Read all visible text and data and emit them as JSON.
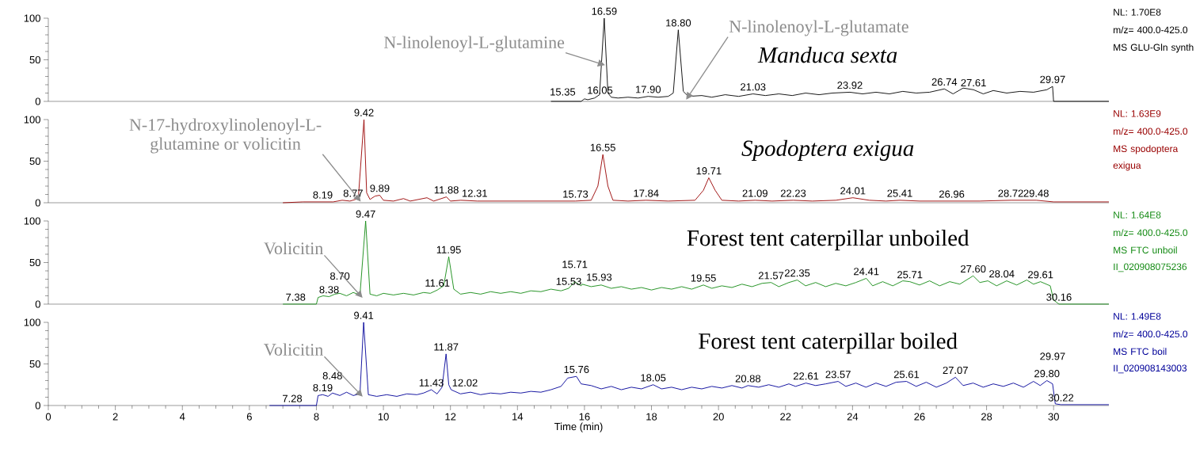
{
  "chart_data": [
    {
      "type": "line",
      "title": "Manduca sexta",
      "xlim": [
        0,
        31.65
      ],
      "ylim": [
        0,
        100
      ],
      "yticks": [
        0,
        50,
        100
      ],
      "tick_labels": "y",
      "x": [
        15.0,
        15.9,
        16.0,
        16.1,
        16.3,
        16.45,
        16.59,
        16.7,
        16.8,
        17.0,
        17.3,
        17.6,
        17.9,
        18.2,
        18.5,
        18.65,
        18.8,
        18.95,
        19.1,
        19.5,
        19.8,
        20.2,
        20.6,
        21.03,
        21.4,
        21.8,
        22.2,
        22.6,
        23.0,
        23.4,
        23.92,
        24.3,
        24.7,
        25.1,
        25.5,
        25.9,
        26.3,
        26.74,
        27.0,
        27.3,
        27.61,
        27.9,
        28.2,
        28.6,
        29.0,
        29.4,
        29.8,
        29.97,
        30.0,
        31.65
      ],
      "series": [
        {
          "color": "#000000",
          "values": [
            0,
            0,
            3,
            2,
            4,
            8,
            100,
            10,
            5,
            4,
            5,
            4,
            6,
            5,
            6,
            10,
            86,
            12,
            6,
            7,
            5,
            8,
            6,
            9,
            7,
            9,
            7,
            10,
            8,
            10,
            11,
            9,
            11,
            9,
            12,
            10,
            11,
            15,
            9,
            16,
            14,
            9,
            13,
            10,
            12,
            11,
            14,
            18,
            0,
            0
          ]
        }
      ],
      "annotations": [
        {
          "text": "15.35",
          "x": 15.35,
          "y": 3
        },
        {
          "text": "16.05",
          "x": 16.05,
          "y": 5
        },
        {
          "text": "16.59",
          "x": 16.59,
          "y": 100
        },
        {
          "text": "17.90",
          "x": 17.9,
          "y": 6
        },
        {
          "text": "18.80",
          "x": 18.8,
          "y": 86
        },
        {
          "text": "21.03",
          "x": 21.03,
          "y": 9
        },
        {
          "text": "23.92",
          "x": 23.92,
          "y": 11
        },
        {
          "text": "26.74",
          "x": 26.74,
          "y": 15
        },
        {
          "text": "27.61",
          "x": 27.61,
          "y": 14
        },
        {
          "text": "29.97",
          "x": 29.97,
          "y": 18
        },
        "NL: 1.70E8",
        "m/z= 400.0-425.0",
        "MS GLU-Gln synth",
        {
          "text": "N-linolenoyl-L-glutamine",
          "x": 16.5,
          "y": 45
        },
        {
          "text": "N-linolenoyl-L-glutamate",
          "x": 19.1,
          "y": 6
        }
      ]
    },
    {
      "type": "line",
      "title": "Spodoptera exigua",
      "xlim": [
        0,
        31.65
      ],
      "ylim": [
        0,
        100
      ],
      "yticks": [
        0,
        50,
        100
      ],
      "tick_labels": "y",
      "x": [
        7.0,
        7.6,
        8.19,
        8.5,
        8.77,
        9.0,
        9.25,
        9.42,
        9.5,
        9.6,
        9.75,
        9.89,
        10.0,
        10.3,
        10.6,
        10.8,
        11.3,
        11.5,
        11.88,
        12.0,
        12.31,
        12.8,
        13.5,
        14.2,
        15.0,
        15.73,
        16.2,
        16.4,
        16.55,
        16.7,
        16.85,
        17.3,
        17.84,
        18.5,
        19.3,
        19.55,
        19.71,
        19.9,
        20.1,
        20.6,
        21.09,
        21.6,
        22.23,
        22.8,
        23.5,
        24.01,
        24.5,
        25.0,
        25.41,
        26.0,
        26.96,
        27.8,
        28.72,
        29.48,
        30.0,
        31.65
      ],
      "series": [
        {
          "color": "#990000",
          "values": [
            0,
            1,
            1,
            1,
            3,
            2,
            5,
            100,
            12,
            4,
            8,
            9,
            3,
            2,
            5,
            2,
            6,
            2,
            7,
            2,
            3,
            2,
            2,
            2,
            2,
            2,
            3,
            20,
            58,
            20,
            3,
            2,
            3,
            2,
            3,
            15,
            30,
            15,
            3,
            2,
            3,
            2,
            3,
            2,
            3,
            6,
            3,
            2,
            3,
            2,
            2,
            2,
            3,
            3,
            1,
            1
          ]
        }
      ],
      "annotations": [
        {
          "text": "8.19",
          "x": 8.19,
          "y": 1
        },
        {
          "text": "8.77",
          "x": 8.77,
          "y": 3
        },
        {
          "text": "9.42",
          "x": 9.42,
          "y": 100
        },
        {
          "text": "9.89",
          "x": 9.89,
          "y": 9
        },
        {
          "text": "11.88",
          "x": 11.88,
          "y": 7
        },
        {
          "text": "12.31",
          "x": 12.31,
          "y": 3
        },
        {
          "text": "15.73",
          "x": 15.73,
          "y": 2
        },
        {
          "text": "16.55",
          "x": 16.55,
          "y": 58
        },
        {
          "text": "17.84",
          "x": 17.84,
          "y": 3
        },
        {
          "text": "19.71",
          "x": 19.71,
          "y": 30
        },
        {
          "text": "21.09",
          "x": 21.09,
          "y": 3
        },
        {
          "text": "22.23",
          "x": 22.23,
          "y": 3
        },
        {
          "text": "24.01",
          "x": 24.01,
          "y": 6
        },
        {
          "text": "25.41",
          "x": 25.41,
          "y": 3
        },
        {
          "text": "26.96",
          "x": 26.96,
          "y": 2
        },
        {
          "text": "28.72",
          "x": 28.72,
          "y": 3
        },
        {
          "text": "29.48",
          "x": 29.48,
          "y": 3
        },
        "NL: 1.63E9",
        "m/z= 400.0-425.0",
        "MS spodoptera exigua",
        {
          "text": "N-17-hydroxylinolenoyl-L-glutamine or volicitin",
          "x": 9.25,
          "y": 5
        }
      ]
    },
    {
      "type": "line",
      "title": "Forest tent caterpillar unboiled",
      "xlim": [
        0,
        31.65
      ],
      "ylim": [
        0,
        100
      ],
      "yticks": [
        0,
        50,
        100
      ],
      "tick_labels": "y",
      "x": [
        7.0,
        7.38,
        8.0,
        8.05,
        8.2,
        8.38,
        8.55,
        8.7,
        8.9,
        9.1,
        9.3,
        9.47,
        9.6,
        9.8,
        10.0,
        10.3,
        10.6,
        10.9,
        11.2,
        11.4,
        11.61,
        11.8,
        11.95,
        12.1,
        12.3,
        12.6,
        12.9,
        13.2,
        13.5,
        13.8,
        14.1,
        14.4,
        14.7,
        15.0,
        15.3,
        15.53,
        15.71,
        15.9,
        15.93,
        16.2,
        16.5,
        16.8,
        17.1,
        17.4,
        17.7,
        18.0,
        18.3,
        18.6,
        18.9,
        19.2,
        19.55,
        19.8,
        20.1,
        20.4,
        20.7,
        21.0,
        21.3,
        21.57,
        21.8,
        22.1,
        22.35,
        22.6,
        22.9,
        23.2,
        23.5,
        23.8,
        24.1,
        24.41,
        24.6,
        24.9,
        25.2,
        25.5,
        25.71,
        26.0,
        26.3,
        26.6,
        26.9,
        27.2,
        27.4,
        27.6,
        27.8,
        28.04,
        28.3,
        28.6,
        28.9,
        29.2,
        29.4,
        29.61,
        29.9,
        30.0,
        30.16,
        31.65
      ],
      "series": [
        {
          "color": "#138a13",
          "values": [
            0,
            0,
            0,
            8,
            10,
            9,
            12,
            13,
            10,
            14,
            11,
            100,
            12,
            10,
            13,
            11,
            13,
            11,
            14,
            13,
            17,
            22,
            57,
            18,
            12,
            14,
            12,
            15,
            13,
            15,
            13,
            16,
            15,
            18,
            16,
            19,
            27,
            22,
            24,
            21,
            23,
            19,
            21,
            18,
            20,
            17,
            20,
            18,
            21,
            18,
            23,
            19,
            22,
            20,
            24,
            21,
            25,
            26,
            21,
            26,
            29,
            22,
            26,
            21,
            25,
            22,
            26,
            31,
            22,
            27,
            22,
            28,
            27,
            23,
            28,
            22,
            27,
            24,
            29,
            34,
            26,
            28,
            22,
            28,
            23,
            29,
            24,
            27,
            22,
            5,
            0,
            0
          ]
        }
      ],
      "annotations": [
        {
          "text": "7.38",
          "x": 7.38,
          "y": 0
        },
        {
          "text": "8.38",
          "x": 8.38,
          "y": 9
        },
        {
          "text": "8.70",
          "x": 8.7,
          "y": 13
        },
        {
          "text": "9.47",
          "x": 9.47,
          "y": 100
        },
        {
          "text": "11.61",
          "x": 11.61,
          "y": 17
        },
        {
          "text": "11.95",
          "x": 11.95,
          "y": 57
        },
        {
          "text": "15.53",
          "x": 15.53,
          "y": 19
        },
        {
          "text": "15.71",
          "x": 15.71,
          "y": 27
        },
        {
          "text": "15.93",
          "x": 15.93,
          "y": 24
        },
        {
          "text": "19.55",
          "x": 19.55,
          "y": 23
        },
        {
          "text": "21.57",
          "x": 21.57,
          "y": 26
        },
        {
          "text": "22.35",
          "x": 22.35,
          "y": 29
        },
        {
          "text": "24.41",
          "x": 24.41,
          "y": 31
        },
        {
          "text": "25.71",
          "x": 25.71,
          "y": 27
        },
        {
          "text": "27.60",
          "x": 27.6,
          "y": 34
        },
        {
          "text": "28.04",
          "x": 28.04,
          "y": 28
        },
        {
          "text": "29.61",
          "x": 29.61,
          "y": 27
        },
        {
          "text": "30.16",
          "x": 30.16,
          "y": 0
        },
        "NL: 1.64E8",
        "m/z= 400.0-425.0",
        "MS FTC unboil II_020908075236",
        {
          "text": "Volicitin",
          "x": 9.3,
          "y": 11
        }
      ]
    },
    {
      "type": "line",
      "title": "Forest tent caterpillar boiled",
      "xlabel": "Time (min)",
      "xlim": [
        0,
        31.65
      ],
      "ylim": [
        0,
        100
      ],
      "yticks": [
        0,
        50,
        100
      ],
      "xticks": [
        0,
        2,
        4,
        6,
        8,
        10,
        12,
        14,
        16,
        18,
        20,
        22,
        24,
        26,
        28,
        30
      ],
      "x": [
        6.6,
        7.28,
        8.0,
        8.05,
        8.19,
        8.35,
        8.48,
        8.7,
        8.9,
        9.1,
        9.3,
        9.41,
        9.55,
        9.8,
        10.1,
        10.4,
        10.7,
        11.0,
        11.2,
        11.43,
        11.6,
        11.75,
        11.87,
        11.95,
        12.02,
        12.3,
        12.6,
        12.9,
        13.2,
        13.5,
        13.8,
        14.1,
        14.4,
        14.7,
        15.0,
        15.3,
        15.5,
        15.76,
        15.9,
        16.2,
        16.5,
        16.8,
        17.1,
        17.4,
        17.7,
        18.05,
        18.3,
        18.6,
        18.9,
        19.2,
        19.5,
        19.8,
        20.1,
        20.4,
        20.7,
        20.88,
        21.2,
        21.5,
        21.8,
        22.1,
        22.3,
        22.61,
        22.9,
        23.2,
        23.57,
        23.8,
        24.1,
        24.4,
        24.7,
        25.0,
        25.3,
        25.61,
        25.9,
        26.2,
        26.5,
        26.8,
        27.07,
        27.3,
        27.6,
        27.9,
        28.2,
        28.5,
        28.8,
        29.1,
        29.4,
        29.6,
        29.8,
        29.97,
        30.05,
        30.22,
        31.65
      ],
      "series": [
        {
          "color": "#000099",
          "values": [
            0,
            0,
            0,
            12,
            13,
            11,
            15,
            12,
            16,
            12,
            14,
            100,
            13,
            11,
            13,
            11,
            14,
            13,
            15,
            19,
            14,
            22,
            62,
            25,
            19,
            14,
            16,
            13,
            15,
            14,
            16,
            15,
            17,
            16,
            19,
            23,
            33,
            35,
            26,
            24,
            20,
            23,
            19,
            22,
            20,
            25,
            20,
            22,
            19,
            22,
            20,
            23,
            21,
            24,
            21,
            24,
            22,
            25,
            22,
            26,
            23,
            27,
            24,
            26,
            29,
            23,
            27,
            22,
            27,
            23,
            28,
            29,
            23,
            28,
            22,
            27,
            34,
            24,
            27,
            22,
            26,
            23,
            27,
            22,
            29,
            24,
            30,
            26,
            2,
            1,
            1
          ]
        }
      ],
      "annotations": [
        {
          "text": "7.28",
          "x": 7.28,
          "y": 0
        },
        {
          "text": "8.19",
          "x": 8.19,
          "y": 13
        },
        {
          "text": "8.48",
          "x": 8.48,
          "y": 15
        },
        {
          "text": "9.41",
          "x": 9.41,
          "y": 100
        },
        {
          "text": "11.43",
          "x": 11.43,
          "y": 19
        },
        {
          "text": "11.87",
          "x": 11.87,
          "y": 62
        },
        {
          "text": "12.02",
          "x": 12.02,
          "y": 19
        },
        {
          "text": "15.76",
          "x": 15.76,
          "y": 35
        },
        {
          "text": "18.05",
          "x": 18.05,
          "y": 25
        },
        {
          "text": "20.88",
          "x": 20.88,
          "y": 24
        },
        {
          "text": "22.61",
          "x": 22.61,
          "y": 27
        },
        {
          "text": "23.57",
          "x": 23.57,
          "y": 29
        },
        {
          "text": "25.61",
          "x": 25.61,
          "y": 29
        },
        {
          "text": "27.07",
          "x": 27.07,
          "y": 34
        },
        {
          "text": "29.80",
          "x": 29.8,
          "y": 30
        },
        {
          "text": "29.97",
          "x": 29.97,
          "y": 26
        },
        {
          "text": "30.22",
          "x": 30.22,
          "y": 1
        },
        "NL: 1.49E8",
        "m/z= 400.0-425.0",
        "MS FTC boil II_020908143003",
        {
          "text": "Volicitin",
          "x": 9.3,
          "y": 14
        }
      ]
    }
  ]
}
